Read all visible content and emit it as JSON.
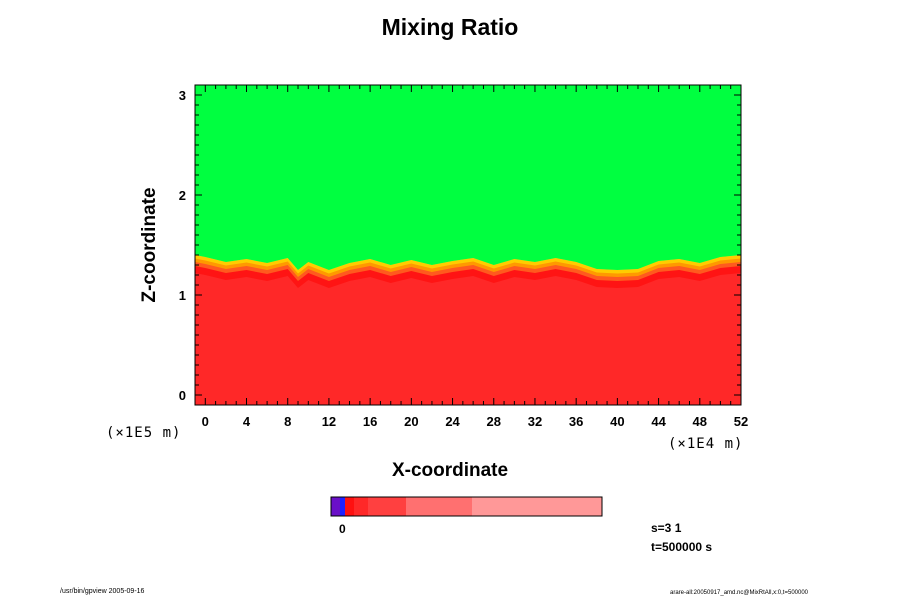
{
  "chart_data": {
    "type": "heatmap",
    "title": "Mixing Ratio",
    "xlabel": "X-coordinate",
    "ylabel": "Z-coordinate",
    "x_unit": "(×1E4 m)",
    "y_unit": "(×1E5 m)",
    "x_ticks": [
      "0",
      "4",
      "8",
      "12",
      "16",
      "20",
      "24",
      "28",
      "32",
      "36",
      "40",
      "44",
      "48",
      "52"
    ],
    "y_ticks": [
      "0",
      "1",
      "2",
      "3"
    ],
    "xlim": [
      -1,
      52
    ],
    "ylim": [
      -0.1,
      3.1
    ],
    "colorbar_label": "0",
    "colors": {
      "upper_fill": "#00ff40",
      "lower_fill": "#ff2828",
      "interface_bands": [
        "#ffff00",
        "#ffcc00",
        "#ff9900",
        "#ff5a1e",
        "#ff1414"
      ],
      "colorbar": [
        "#6a10c8",
        "#2020ff",
        "#ff1010",
        "#ff2828",
        "#ff3c3c",
        "#ff5858",
        "#ff7878",
        "#ff9898"
      ]
    },
    "interface_profile": {
      "x": [
        -1,
        0,
        2,
        4,
        6,
        8,
        9,
        10,
        12,
        14,
        16,
        18,
        20,
        22,
        24,
        26,
        28,
        30,
        32,
        34,
        36,
        38,
        40,
        42,
        44,
        46,
        48,
        50,
        52
      ],
      "z": [
        1.4,
        1.38,
        1.33,
        1.36,
        1.32,
        1.37,
        1.25,
        1.33,
        1.25,
        1.32,
        1.36,
        1.3,
        1.35,
        1.3,
        1.34,
        1.37,
        1.3,
        1.36,
        1.33,
        1.37,
        1.33,
        1.26,
        1.25,
        1.26,
        1.34,
        1.36,
        1.32,
        1.38,
        1.4
      ]
    }
  },
  "info": {
    "s": "s=3 1",
    "t": "t=500000 s"
  },
  "footer": {
    "left": "/usr/bin/gpview 2005-09-16",
    "right": "arare-all:20050917_amd.nc@MixRtAll,x:0,t=500000"
  }
}
